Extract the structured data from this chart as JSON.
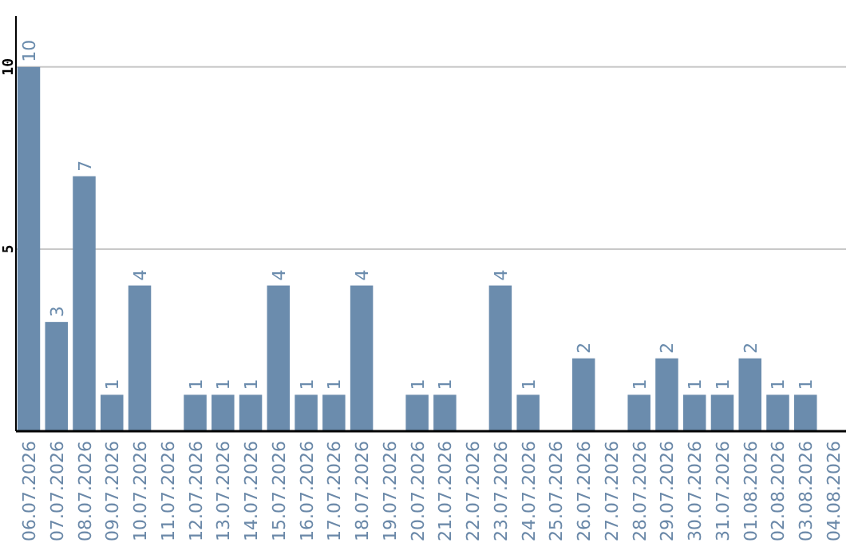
{
  "chart_data": {
    "type": "bar",
    "categories": [
      "06.07.2026",
      "07.07.2026",
      "08.07.2026",
      "09.07.2026",
      "10.07.2026",
      "11.07.2026",
      "12.07.2026",
      "13.07.2026",
      "14.07.2026",
      "15.07.2026",
      "16.07.2026",
      "17.07.2026",
      "18.07.2026",
      "19.07.2026",
      "20.07.2026",
      "21.07.2026",
      "22.07.2026",
      "23.07.2026",
      "24.07.2026",
      "25.07.2026",
      "26.07.2026",
      "27.07.2026",
      "28.07.2026",
      "29.07.2026",
      "30.07.2026",
      "31.07.2026",
      "01.08.2026",
      "02.08.2026",
      "03.08.2026",
      "04.08.2026"
    ],
    "values": [
      10,
      3,
      7,
      1,
      4,
      null,
      1,
      1,
      1,
      4,
      1,
      1,
      4,
      null,
      1,
      1,
      null,
      4,
      1,
      null,
      2,
      null,
      1,
      2,
      1,
      1,
      2,
      1,
      1,
      null
    ],
    "color": "#6b8cad",
    "ylim": [
      0,
      11.4
    ],
    "yticks": [
      5,
      10
    ],
    "grid": "y",
    "data_labels": true
  }
}
